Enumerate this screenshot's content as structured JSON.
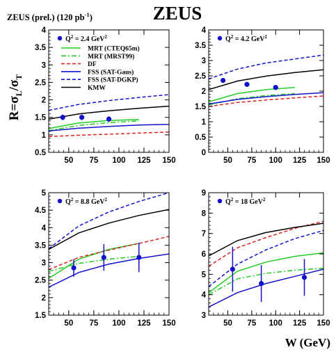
{
  "header": {
    "title": "ZEUS",
    "subtitle_main": "ZEUS (prel.) (120 pb",
    "subtitle_sup": "-1",
    "subtitle_end": ")"
  },
  "axis_labels": {
    "y_R": "R=σ",
    "y_sub_L": "L",
    "y_slash": "/σ",
    "y_sub_T": "T",
    "x": "W (GeV)"
  },
  "legend": [
    {
      "label": "MRT (CTEQ65m)",
      "color": "#22cc22",
      "style": "solid"
    },
    {
      "label": "MRT (MRST99)",
      "color": "#22cc22",
      "style": "dashdot"
    },
    {
      "label": "DF",
      "color": "#dd2222",
      "style": "dashed"
    },
    {
      "label": "FSS (SAT-Gaus)",
      "color": "#1111cc",
      "style": "solid"
    },
    {
      "label": "FSS (SAT-DGKP)",
      "color": "#1111cc",
      "style": "dashed"
    },
    {
      "label": "KMW",
      "color": "#000000",
      "style": "solid"
    }
  ],
  "chart_data": [
    {
      "type": "line",
      "panel_label": "Q² = 2.4 GeV²",
      "q2_prefix": "Q",
      "q2_value": " = 2.4 GeV",
      "xlim": [
        30,
        150
      ],
      "ylim": [
        0.5,
        4
      ],
      "xticks": [
        "50",
        "75",
        "100",
        "125",
        "150"
      ],
      "yticks": [
        "0.5",
        "1",
        "1.5",
        "2",
        "2.5",
        "3",
        "3.5",
        "4"
      ],
      "data": {
        "x": [
          44,
          63,
          90
        ],
        "y": [
          1.5,
          1.5,
          1.45
        ],
        "err": [
          0.08,
          0.08,
          0.08
        ]
      },
      "curves": {
        "MRT (CTEQ65m)": [
          [
            30,
            1.18
          ],
          [
            60,
            1.34
          ],
          [
            90,
            1.41
          ],
          [
            120,
            1.44
          ]
        ],
        "MRT (MRST99)": [
          [
            30,
            1.12
          ],
          [
            60,
            1.27
          ],
          [
            90,
            1.35
          ],
          [
            120,
            1.4
          ]
        ],
        "DF": [
          [
            30,
            0.95
          ],
          [
            60,
            0.99
          ],
          [
            90,
            1.02
          ],
          [
            120,
            1.05
          ],
          [
            150,
            1.08
          ]
        ],
        "FSS (SAT-Gaus)": [
          [
            30,
            1.11
          ],
          [
            60,
            1.19
          ],
          [
            90,
            1.24
          ],
          [
            120,
            1.28
          ],
          [
            150,
            1.3
          ]
        ],
        "FSS (SAT-DGKP)": [
          [
            30,
            1.7
          ],
          [
            60,
            1.87
          ],
          [
            90,
            1.98
          ],
          [
            120,
            2.07
          ],
          [
            150,
            2.15
          ]
        ],
        "KMW": [
          [
            30,
            1.45
          ],
          [
            60,
            1.6
          ],
          [
            90,
            1.69
          ],
          [
            120,
            1.76
          ],
          [
            150,
            1.82
          ]
        ]
      }
    },
    {
      "type": "line",
      "panel_label": "Q² = 4.2 GeV²",
      "q2_prefix": "Q",
      "q2_value": " = 4.2 GeV",
      "xlim": [
        30,
        150
      ],
      "ylim": [
        0,
        4
      ],
      "xticks": [
        "50",
        "75",
        "100",
        "125",
        "150"
      ],
      "yticks": [
        "0",
        "0.5",
        "1",
        "1.5",
        "2",
        "2.5",
        "3",
        "3.5",
        "4"
      ],
      "data": {
        "x": [
          45,
          70,
          100
        ],
        "y": [
          2.35,
          2.22,
          2.12
        ],
        "err": [
          0.08,
          0.08,
          0.08
        ]
      },
      "curves": {
        "MRT (CTEQ65m)": [
          [
            30,
            1.65
          ],
          [
            60,
            1.92
          ],
          [
            90,
            2.05
          ],
          [
            120,
            2.12
          ]
        ],
        "MRT (MRST99)": [
          [
            30,
            1.55
          ],
          [
            60,
            1.75
          ],
          [
            90,
            1.86
          ],
          [
            120,
            1.92
          ]
        ],
        "DF": [
          [
            30,
            1.5
          ],
          [
            60,
            1.63
          ],
          [
            90,
            1.71
          ],
          [
            120,
            1.78
          ],
          [
            150,
            1.84
          ]
        ],
        "FSS (SAT-Gaus)": [
          [
            30,
            1.58
          ],
          [
            60,
            1.73
          ],
          [
            90,
            1.82
          ],
          [
            120,
            1.89
          ],
          [
            150,
            1.95
          ]
        ],
        "FSS (SAT-DGKP)": [
          [
            30,
            2.4
          ],
          [
            60,
            2.72
          ],
          [
            90,
            2.92
          ],
          [
            120,
            3.05
          ],
          [
            150,
            3.18
          ]
        ],
        "KMW": [
          [
            30,
            2.05
          ],
          [
            60,
            2.33
          ],
          [
            90,
            2.49
          ],
          [
            120,
            2.61
          ],
          [
            150,
            2.7
          ]
        ]
      }
    },
    {
      "type": "line",
      "panel_label": "Q² = 8.8 GeV²",
      "q2_prefix": "Q",
      "q2_value": " = 8.8 GeV",
      "xlim": [
        30,
        150
      ],
      "ylim": [
        1.5,
        5
      ],
      "xticks": [
        "50",
        "75",
        "100",
        "125",
        "150"
      ],
      "yticks": [
        "1.5",
        "2",
        "2.5",
        "3",
        "3.5",
        "4",
        "4.5",
        "5"
      ],
      "data": {
        "x": [
          55,
          85,
          120
        ],
        "y": [
          2.85,
          3.15,
          3.15
        ],
        "err": [
          0.25,
          0.38,
          0.42
        ]
      },
      "curves": {
        "MRT (CTEQ65m)": [
          [
            30,
            2.55
          ],
          [
            60,
            3.1
          ],
          [
            90,
            3.38
          ],
          [
            120,
            3.55
          ]
        ],
        "MRT (MRST99)": [
          [
            30,
            2.75
          ],
          [
            60,
            2.98
          ],
          [
            90,
            3.1
          ],
          [
            120,
            3.18
          ]
        ],
        "DF": [
          [
            30,
            2.8
          ],
          [
            60,
            3.15
          ],
          [
            90,
            3.36
          ],
          [
            120,
            3.55
          ],
          [
            150,
            3.75
          ]
        ],
        "FSS (SAT-Gaus)": [
          [
            30,
            2.3
          ],
          [
            60,
            2.72
          ],
          [
            90,
            2.96
          ],
          [
            120,
            3.12
          ],
          [
            150,
            3.25
          ]
        ],
        "FSS (SAT-DGKP)": [
          [
            30,
            3.4
          ],
          [
            60,
            4.05
          ],
          [
            90,
            4.45
          ],
          [
            120,
            4.75
          ],
          [
            150,
            5.0
          ]
        ],
        "KMW": [
          [
            30,
            3.38
          ],
          [
            60,
            3.85
          ],
          [
            90,
            4.13
          ],
          [
            120,
            4.35
          ],
          [
            150,
            4.52
          ]
        ]
      }
    },
    {
      "type": "line",
      "panel_label": "Q² = 18 GeV²",
      "q2_prefix": "Q",
      "q2_value": " = 18 GeV",
      "xlim": [
        30,
        150
      ],
      "ylim": [
        3,
        9
      ],
      "xticks": [
        "50",
        "75",
        "100",
        "125",
        "150"
      ],
      "yticks": [
        "3",
        "4",
        "5",
        "6",
        "7",
        "8",
        "9"
      ],
      "data": {
        "x": [
          55,
          85,
          130
        ],
        "y": [
          5.25,
          4.55,
          4.85
        ],
        "err": [
          1.1,
          0.9,
          0.9
        ]
      },
      "curves": {
        "MRT (CTEQ65m)": [
          [
            30,
            4.1
          ],
          [
            60,
            5.15
          ],
          [
            90,
            5.6
          ],
          [
            120,
            5.88
          ],
          [
            150,
            6.05
          ]
        ],
        "MRT (MRST99)": [
          [
            30,
            4.0
          ],
          [
            60,
            4.78
          ],
          [
            90,
            5.05
          ],
          [
            120,
            5.2
          ],
          [
            150,
            5.3
          ]
        ],
        "DF": [
          [
            30,
            5.4
          ],
          [
            60,
            6.3
          ],
          [
            90,
            6.8
          ],
          [
            120,
            7.25
          ],
          [
            150,
            7.6
          ]
        ],
        "FSS (SAT-Gaus)": [
          [
            30,
            3.4
          ],
          [
            60,
            4.1
          ],
          [
            90,
            4.55
          ],
          [
            120,
            4.9
          ],
          [
            150,
            5.25
          ]
        ],
        "FSS (SAT-DGKP)": [
          [
            30,
            4.4
          ],
          [
            60,
            5.5
          ],
          [
            90,
            6.2
          ],
          [
            120,
            6.75
          ],
          [
            150,
            7.15
          ]
        ],
        "KMW": [
          [
            30,
            5.9
          ],
          [
            60,
            6.65
          ],
          [
            90,
            7.05
          ],
          [
            120,
            7.3
          ],
          [
            150,
            7.5
          ]
        ]
      }
    }
  ]
}
